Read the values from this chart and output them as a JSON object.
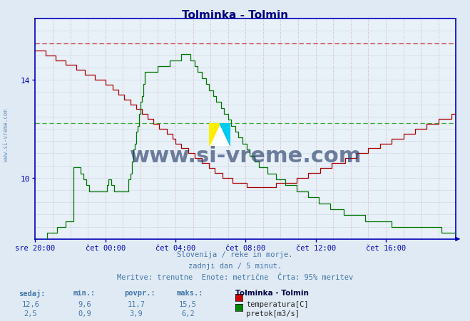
{
  "title": "Tolminka - Tolmin",
  "title_color": "#000080",
  "bg_color": "#e0eaf4",
  "plot_bg_color": "#e8f0f8",
  "temp_color": "#aa0000",
  "flow_color": "#007700",
  "dashed_temp_color": "#cc3333",
  "dashed_flow_color": "#33aa33",
  "axis_color": "#0000bb",
  "tick_color": "#4477aa",
  "grid_h_color": "#99aacc",
  "grid_v_color": "#cc9999",
  "footer_color": "#4477aa",
  "watermark_color": "#1a3060",
  "sidebar_color": "#4477aa",
  "y_min": 7.5,
  "y_max": 16.5,
  "y_ticks": [
    10,
    14
  ],
  "flow_data_min": 0.0,
  "flow_data_max": 7.4,
  "temp_max_ref": 15.5,
  "flow_avg_ref": 3.9,
  "x_labels": [
    "sre 20:00",
    "čet 00:00",
    "čet 04:00",
    "čet 08:00",
    "čet 12:00",
    "čet 16:00"
  ],
  "x_tick_pos": [
    0.0,
    0.1667,
    0.3333,
    0.5,
    0.6667,
    0.8333
  ],
  "footer_line1": "Slovenija / reke in morje.",
  "footer_line2": "zadnji dan / 5 minut.",
  "footer_line3": "Meritve: trenutne  Enote: metrične  Črta: 95% meritev",
  "watermark": "www.si-vreme.com",
  "sidebar_text": "www.si-vreme.com",
  "legend_title": "Tolminka - Tolmin",
  "legend_items": [
    "temperatura[C]",
    "pretok[m3/s]"
  ],
  "legend_colors": [
    "#cc0000",
    "#008800"
  ],
  "table_headers": [
    "sedaj:",
    "min.:",
    "povpr.:",
    "maks.:"
  ],
  "temp_stats": [
    "12,6",
    "9,6",
    "11,7",
    "15,5"
  ],
  "flow_stats": [
    "2,5",
    "0,9",
    "3,9",
    "6,2"
  ]
}
